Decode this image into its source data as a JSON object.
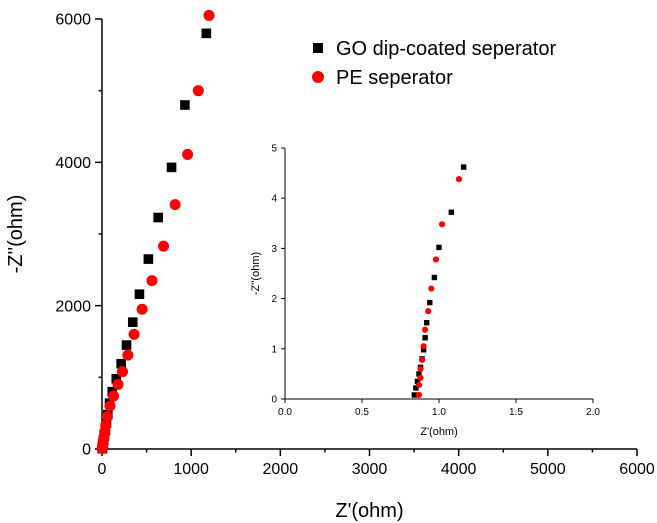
{
  "chart_data": [
    {
      "type": "scatter",
      "title": "",
      "xlabel": "Z'(ohm)",
      "ylabel": "-Z''(ohm)",
      "xlim": [
        0,
        6000
      ],
      "ylim": [
        0,
        6000
      ],
      "xticks": [
        0,
        1000,
        2000,
        3000,
        4000,
        5000,
        6000
      ],
      "yticks": [
        0,
        2000,
        4000,
        6000
      ],
      "grid": false,
      "legend": "top-right",
      "series": [
        {
          "name": "GO dip-coated seperator",
          "marker": "square",
          "color": "#000000",
          "points": [
            [
              3,
              5
            ],
            [
              6,
              20
            ],
            [
              10,
              45
            ],
            [
              15,
              80
            ],
            [
              20,
              120
            ],
            [
              28,
              180
            ],
            [
              38,
              260
            ],
            [
              50,
              360
            ],
            [
              65,
              480
            ],
            [
              85,
              640
            ],
            [
              115,
              800
            ],
            [
              160,
              980
            ],
            [
              215,
              1190
            ],
            [
              275,
              1450
            ],
            [
              345,
              1770
            ],
            [
              420,
              2160
            ],
            [
              520,
              2650
            ],
            [
              630,
              3230
            ],
            [
              780,
              3930
            ],
            [
              930,
              4800
            ],
            [
              1170,
              5800
            ]
          ]
        },
        {
          "name": "PE seperator",
          "marker": "circle",
          "color": "#ff0000",
          "points": [
            [
              2,
              5
            ],
            [
              4,
              20
            ],
            [
              6,
              45
            ],
            [
              10,
              80
            ],
            [
              15,
              120
            ],
            [
              22,
              170
            ],
            [
              30,
              240
            ],
            [
              42,
              330
            ],
            [
              60,
              450
            ],
            [
              90,
              600
            ],
            [
              130,
              740
            ],
            [
              180,
              900
            ],
            [
              230,
              1080
            ],
            [
              290,
              1310
            ],
            [
              360,
              1600
            ],
            [
              450,
              1950
            ],
            [
              560,
              2350
            ],
            [
              690,
              2830
            ],
            [
              820,
              3410
            ],
            [
              960,
              4110
            ],
            [
              1080,
              5000
            ],
            [
              1200,
              6050
            ]
          ]
        }
      ]
    },
    {
      "type": "scatter",
      "title": "",
      "xlabel": "Z'(ohm)",
      "ylabel": "-Z''(ohm)",
      "xlim": [
        0.0,
        2.0
      ],
      "ylim": [
        0,
        5
      ],
      "xticks": [
        "0.0",
        "0.5",
        "1.0",
        "1.5",
        "2.0"
      ],
      "yticks": [
        "0",
        "1",
        "2",
        "3",
        "4",
        "5"
      ],
      "grid": false,
      "series": [
        {
          "name": "GO dip-coated seperator",
          "marker": "square",
          "color": "#000000",
          "points": [
            [
              0.84,
              0.08
            ],
            [
              0.85,
              0.22
            ],
            [
              0.86,
              0.35
            ],
            [
              0.87,
              0.5
            ],
            [
              0.88,
              0.63
            ],
            [
              0.89,
              0.8
            ],
            [
              0.9,
              0.98
            ],
            [
              0.91,
              1.22
            ],
            [
              0.92,
              1.52
            ],
            [
              0.94,
              1.92
            ],
            [
              0.97,
              2.42
            ],
            [
              1.0,
              3.02
            ],
            [
              1.08,
              3.72
            ],
            [
              1.16,
              4.62
            ]
          ]
        },
        {
          "name": "PE seperator",
          "marker": "circle",
          "color": "#ff0000",
          "points": [
            [
              0.87,
              0.08
            ],
            [
              0.87,
              0.28
            ],
            [
              0.88,
              0.42
            ],
            [
              0.88,
              0.6
            ],
            [
              0.89,
              0.78
            ],
            [
              0.9,
              1.05
            ],
            [
              0.91,
              1.38
            ],
            [
              0.93,
              1.75
            ],
            [
              0.95,
              2.2
            ],
            [
              0.98,
              2.78
            ],
            [
              1.02,
              3.48
            ],
            [
              1.13,
              4.38
            ]
          ]
        }
      ]
    }
  ]
}
